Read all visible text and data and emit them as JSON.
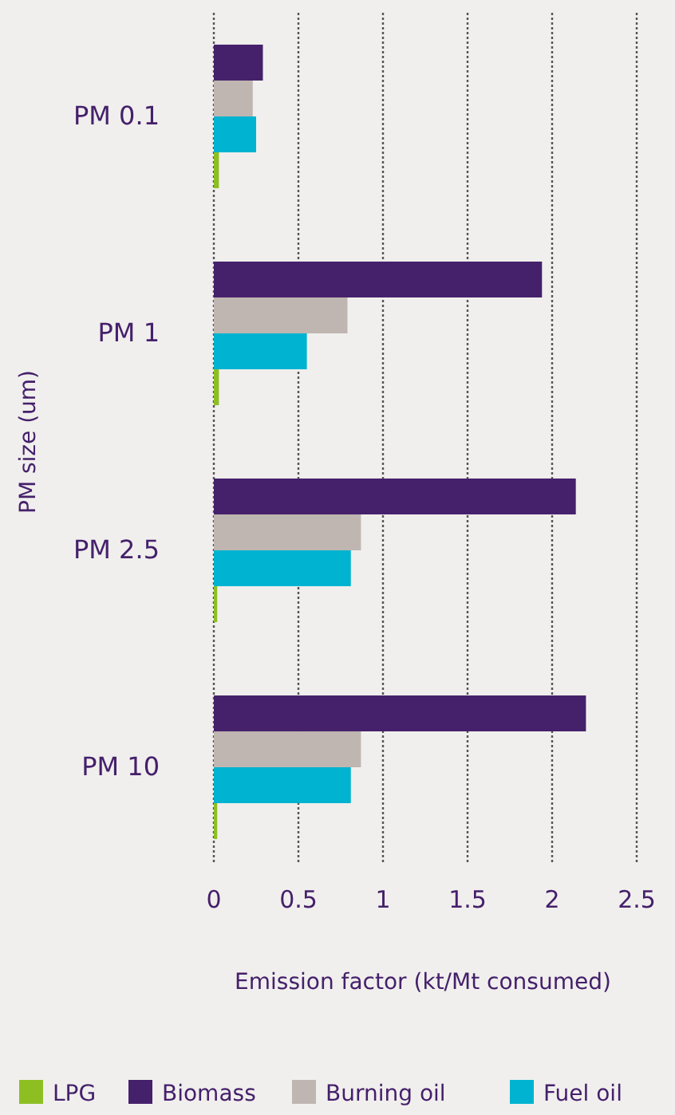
{
  "chart_data": {
    "type": "bar",
    "orientation": "horizontal",
    "categories": [
      "PM 0.1",
      "PM 1",
      "PM 2.5",
      "PM 10"
    ],
    "xlabel": "Emission factor (kt/Mt consumed)",
    "ylabel": "PM size (um)",
    "xlim": [
      0,
      2.5
    ],
    "xticks": [
      0,
      0.5,
      1,
      1.5,
      2,
      2.5
    ],
    "grid": "x",
    "legend": "bottom",
    "series": [
      {
        "name": "LPG",
        "color": "#8dbf22",
        "values": [
          0.03,
          0.03,
          0.02,
          0.02
        ]
      },
      {
        "name": "Biomass",
        "color": "#45206b",
        "values": [
          0.29,
          1.94,
          2.14,
          2.2
        ]
      },
      {
        "name": "Burning oil",
        "color": "#bfb6b1",
        "values": [
          0.23,
          0.79,
          0.87,
          0.87
        ]
      },
      {
        "name": "Fuel oil",
        "color": "#00b3d1",
        "values": [
          0.25,
          0.55,
          0.81,
          0.81
        ]
      }
    ]
  }
}
